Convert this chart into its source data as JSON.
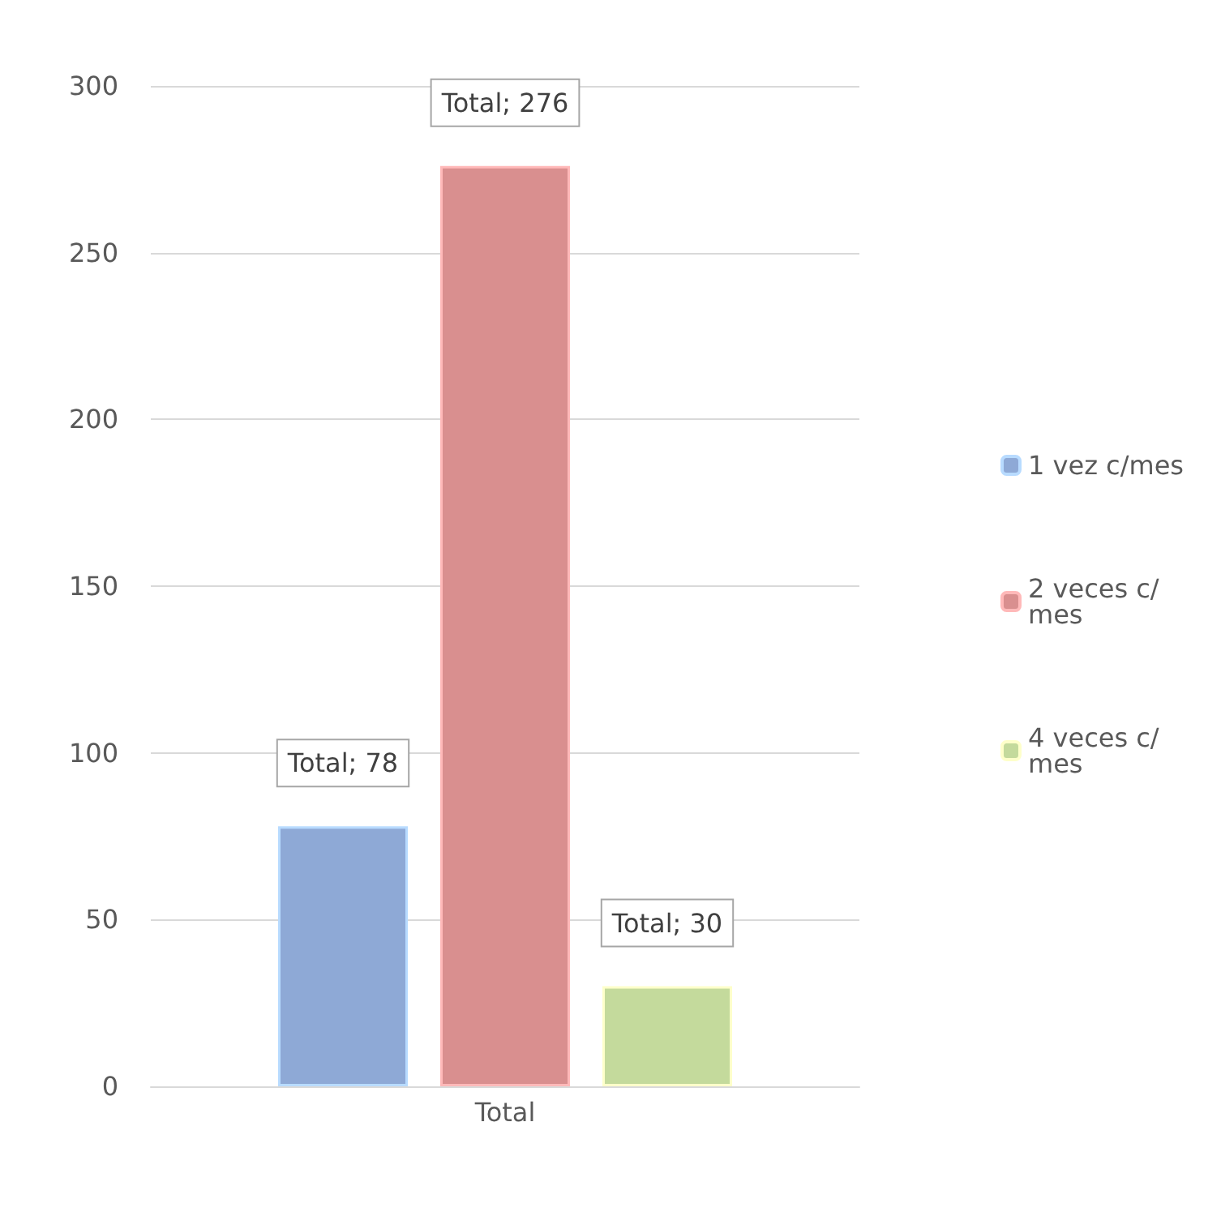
{
  "chart_data": {
    "type": "bar",
    "categories": [
      "Total"
    ],
    "series": [
      {
        "name": "1 vez c/mes",
        "color": "#8ea9d6",
        "values": [
          78
        ],
        "value_labels": [
          "Total; 78"
        ]
      },
      {
        "name": "2 veces c/mes",
        "color": "#d98f8f",
        "values": [
          276
        ],
        "value_labels": [
          "Total; 276"
        ]
      },
      {
        "name": "4 veces c/mes",
        "color": "#c4da9c",
        "values": [
          30
        ],
        "value_labels": [
          "Total; 30"
        ]
      }
    ],
    "ylim": [
      0,
      300
    ],
    "yticks": [
      0,
      50,
      100,
      150,
      200,
      250,
      300
    ],
    "grid": "y",
    "legend": "right"
  }
}
